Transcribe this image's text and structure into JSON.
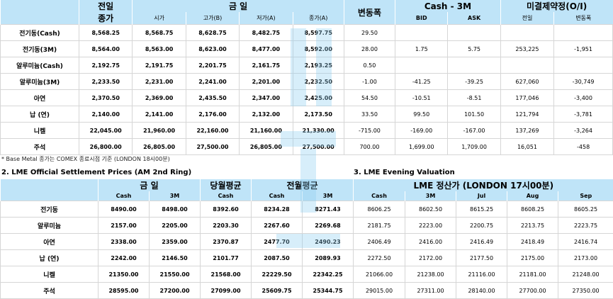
{
  "table1": {
    "header_prev": "전일",
    "header_prev_sub": "종가",
    "header_day": "금   일",
    "header_change": "변동폭",
    "header_cash3m": "Cash - 3M",
    "header_oi": "미결제약정(O/I)",
    "sub_open": "시가",
    "sub_high": "고가(B)",
    "sub_low": "저가(A)",
    "sub_close": "종가(A)",
    "sub_bid": "BID",
    "sub_ask": "ASK",
    "sub_oi_prev": "전일",
    "sub_oi_change": "변동폭",
    "rows": [
      {
        "name": "전기동(Cash)",
        "prev": "8,568.25",
        "open": "8,568.75",
        "high": "8,628.75",
        "low": "8,482.75",
        "close": "8,597.75",
        "change": "29.50",
        "bid": "",
        "ask": "",
        "oi": "",
        "oi_change": ""
      },
      {
        "name": "전기동(3M)",
        "prev": "8,564.00",
        "open": "8,563.00",
        "high": "8,623.00",
        "low": "8,477.00",
        "close": "8,592.00",
        "change": "28.00",
        "bid": "1.75",
        "ask": "5.75",
        "oi": "253,225",
        "oi_change": "-1,951"
      },
      {
        "name": "알루미늄(Cash)",
        "prev": "2,192.75",
        "open": "2,191.75",
        "high": "2,201.75",
        "low": "2,161.75",
        "close": "2,193.25",
        "change": "0.50",
        "bid": "",
        "ask": "",
        "oi": "",
        "oi_change": ""
      },
      {
        "name": "알루미늄(3M)",
        "prev": "2,233.50",
        "open": "2,231.00",
        "high": "2,241.00",
        "low": "2,201.00",
        "close": "2,232.50",
        "change": "-1.00",
        "bid": "-41.25",
        "ask": "-39.25",
        "oi": "627,060",
        "oi_change": "-30,749"
      },
      {
        "name": "아연",
        "prev": "2,370.50",
        "open": "2,369.00",
        "high": "2,435.50",
        "low": "2,347.00",
        "close": "2,425.00",
        "change": "54.50",
        "bid": "-10.51",
        "ask": "-8.51",
        "oi": "177,046",
        "oi_change": "-3,400"
      },
      {
        "name": "납 (연)",
        "prev": "2,140.00",
        "open": "2,141.00",
        "high": "2,176.00",
        "low": "2,132.00",
        "close": "2,173.50",
        "change": "33.50",
        "bid": "99.50",
        "ask": "101.50",
        "oi": "121,794",
        "oi_change": "-3,781"
      },
      {
        "name": "니켈",
        "prev": "22,045.00",
        "open": "21,960.00",
        "high": "22,160.00",
        "low": "21,160.00",
        "close": "21,330.00",
        "change": "-715.00",
        "bid": "-169.00",
        "ask": "-167.00",
        "oi": "137,269",
        "oi_change": "-3,264"
      },
      {
        "name": "주석",
        "prev": "26,800.00",
        "open": "26,805.00",
        "high": "27,500.00",
        "low": "26,805.00",
        "close": "27,500.00",
        "change": "700.00",
        "bid": "1,699.00",
        "ask": "1,709.00",
        "oi": "16,051",
        "oi_change": "-458"
      }
    ]
  },
  "footnote": "* Base Metal 종가는 COMEX 종료시점 기준 (LONDON 18시00분)",
  "section2_title": "2. LME Official Settlement Prices (AM 2nd Ring)",
  "section3_title": "3. LME Evening Valuation",
  "table2": {
    "header_today": "금   일",
    "header_month_avg": "당월평균",
    "header_prev_month_avg": "전월평균",
    "header_evening": "LME 정산가 (LONDON 17시00분)",
    "sub_cash": "Cash",
    "sub_3m": "3M",
    "sub_cash2": "Cash",
    "sub_cash3": "Cash",
    "sub_3m2": "3M",
    "sub_cash4": "Cash",
    "sub_3m3": "3M",
    "sub_jul": "Jul",
    "sub_aug": "Aug",
    "sub_sep": "Sep",
    "rows": [
      {
        "name": "전기동",
        "cash": "8490.00",
        "m3": "8498.00",
        "month_avg": "8392.60",
        "pm_cash": "8234.28",
        "pm_3m": "8271.43",
        "ev_cash": "8606.25",
        "ev_3m": "8602.50",
        "jul": "8615.25",
        "aug": "8608.25",
        "sep": "8605.25"
      },
      {
        "name": "알루미늄",
        "cash": "2157.00",
        "m3": "2205.00",
        "month_avg": "2203.30",
        "pm_cash": "2267.60",
        "pm_3m": "2269.68",
        "ev_cash": "2181.75",
        "ev_3m": "2223.00",
        "jul": "2200.75",
        "aug": "2213.75",
        "sep": "2223.75"
      },
      {
        "name": "아연",
        "cash": "2338.00",
        "m3": "2359.00",
        "month_avg": "2370.87",
        "pm_cash": "2477.70",
        "pm_3m": "2490.23",
        "ev_cash": "2406.49",
        "ev_3m": "2416.00",
        "jul": "2416.49",
        "aug": "2418.49",
        "sep": "2416.74"
      },
      {
        "name": "납 (연)",
        "cash": "2242.00",
        "m3": "2146.50",
        "month_avg": "2101.77",
        "pm_cash": "2087.50",
        "pm_3m": "2089.93",
        "ev_cash": "2272.50",
        "ev_3m": "2172.00",
        "jul": "2177.50",
        "aug": "2175.00",
        "sep": "2173.00"
      },
      {
        "name": "니켈",
        "cash": "21350.00",
        "m3": "21550.00",
        "month_avg": "21568.00",
        "pm_cash": "22229.50",
        "pm_3m": "22342.25",
        "ev_cash": "21066.00",
        "ev_3m": "21238.00",
        "jul": "21116.00",
        "aug": "21181.00",
        "sep": "21248.00"
      },
      {
        "name": "주석",
        "cash": "28595.00",
        "m3": "27200.00",
        "month_avg": "27099.00",
        "pm_cash": "25609.75",
        "pm_3m": "25344.75",
        "ev_cash": "29015.00",
        "ev_3m": "27311.00",
        "jul": "28140.00",
        "aug": "27700.00",
        "sep": "27350.00"
      }
    ]
  },
  "colors": {
    "header_bg": "#bfe4f8",
    "watermark": "#8fd0f2",
    "grid": "#d6d6d6"
  }
}
